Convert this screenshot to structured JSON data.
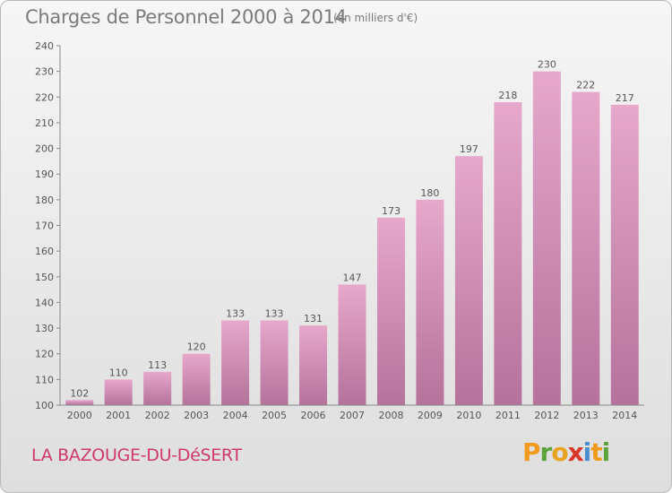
{
  "header": {
    "title": "Charges de Personnel 2000 à 2014",
    "subtitle": "(en milliers d'€)"
  },
  "footer": {
    "commune": "LA BAZOUGE-DU-DéSERT",
    "logo_text": "Proxiti",
    "logo_colors": [
      "#f29a1e",
      "#5aa43a",
      "#e8a321",
      "#d9362a",
      "#4a90d0",
      "#f29a1e",
      "#5aa43a"
    ]
  },
  "colors": {
    "bar_light": "#e7a8cc",
    "bar_dark": "#b5729b",
    "text": "#555555",
    "title": "#7a7a7a",
    "commune": "#d0386f"
  },
  "chart_data": {
    "type": "bar",
    "categories": [
      "2000",
      "2001",
      "2002",
      "2003",
      "2004",
      "2005",
      "2006",
      "2007",
      "2008",
      "2009",
      "2010",
      "2011",
      "2012",
      "2013",
      "2014"
    ],
    "values": [
      102,
      110,
      113,
      120,
      133,
      133,
      131,
      147,
      173,
      180,
      197,
      218,
      230,
      222,
      217
    ],
    "ylim": [
      100,
      240
    ],
    "yticks": [
      100,
      110,
      120,
      130,
      140,
      150,
      160,
      170,
      180,
      190,
      200,
      210,
      220,
      230,
      240
    ],
    "grid": false,
    "title": "Charges de Personnel 2000 à 2014",
    "xlabel": "",
    "ylabel": ""
  }
}
